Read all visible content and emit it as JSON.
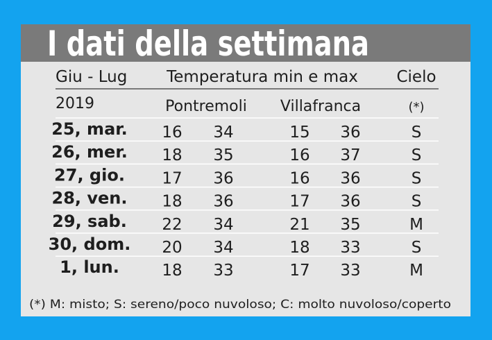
{
  "header": {
    "title": "I dati della settimana"
  },
  "table": {
    "columns": [
      "Giu - Lug",
      "Temperatura min e max",
      "Cielo"
    ],
    "subheader": [
      "2019",
      "Pontremoli",
      "Villafranca",
      "(*)"
    ],
    "rows": [
      [
        "25, mar.",
        16,
        34,
        15,
        36,
        "S"
      ],
      [
        "26, mer.",
        18,
        35,
        16,
        37,
        "S"
      ],
      [
        "27, gio.",
        17,
        36,
        16,
        36,
        "S"
      ],
      [
        "28, ven.",
        18,
        36,
        17,
        36,
        "S"
      ],
      [
        "29, sab.",
        22,
        34,
        21,
        35,
        "M"
      ],
      [
        "30, dom.",
        20,
        34,
        18,
        33,
        "S"
      ],
      [
        "1, lun.",
        18,
        33,
        17,
        33,
        "M"
      ]
    ]
  },
  "footnote": "(*) M: misto; S: sereno/poco nuvoloso; C: molto nuvoloso/coperto"
}
